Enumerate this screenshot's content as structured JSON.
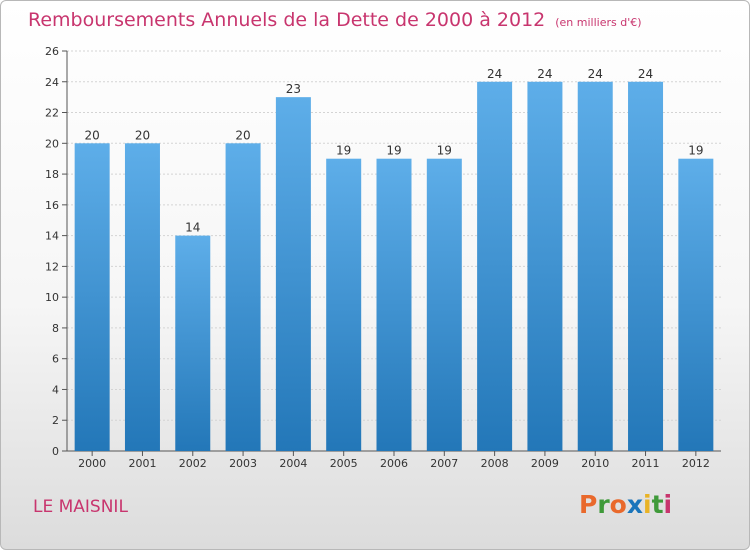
{
  "header": {
    "title": "Remboursements Annuels de la Dette de 2000 à 2012",
    "unit": "(en milliers d'€)"
  },
  "footer": {
    "commune": "LE MAISNIL",
    "logo_text": "Proxiti",
    "logo_colors": [
      "#e9692c",
      "#3f9a3a",
      "#e9692c",
      "#1a75bb",
      "#e9b325",
      "#3f9a3a",
      "#c8356e"
    ]
  },
  "colors": {
    "bar_top": "#5eaee9",
    "bar_bottom": "#2377b8",
    "title": "#c8356e"
  },
  "chart_data": {
    "type": "bar",
    "categories": [
      "2000",
      "2001",
      "2002",
      "2003",
      "2004",
      "2005",
      "2006",
      "2007",
      "2008",
      "2009",
      "2010",
      "2011",
      "2012"
    ],
    "values": [
      20,
      20,
      14,
      20,
      23,
      19,
      19,
      19,
      24,
      24,
      24,
      24,
      19
    ],
    "ylim": [
      0,
      26
    ],
    "yticks": [
      0,
      2,
      4,
      6,
      8,
      10,
      12,
      14,
      16,
      18,
      20,
      22,
      24,
      26
    ],
    "grid": true
  }
}
